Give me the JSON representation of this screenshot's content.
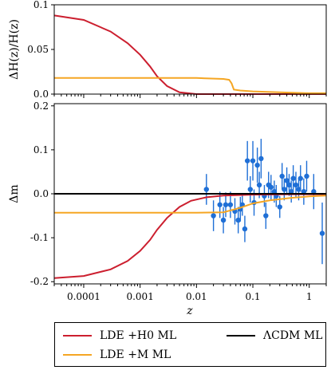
{
  "chart_data": [
    {
      "panel": "top",
      "type": "line",
      "ylabel": "ΔH(z)/H(z)",
      "xscale": "log",
      "xlim": [
        3e-05,
        2.0
      ],
      "ylim": [
        0.0,
        0.1
      ],
      "yticks": [
        0.0,
        0.05,
        0.1
      ],
      "ytick_labels": [
        "0.0",
        "0.05",
        "0.1"
      ],
      "series": [
        {
          "name": "LDE +H0 ML",
          "color": "#cc1f2f",
          "x": [
            3e-05,
            0.0001,
            0.0003,
            0.0006,
            0.001,
            0.0015,
            0.002,
            0.003,
            0.005,
            0.01,
            0.05,
            0.2,
            1.0,
            2.0
          ],
          "y": [
            0.088,
            0.083,
            0.07,
            0.057,
            0.044,
            0.031,
            0.02,
            0.009,
            0.002,
            0.0,
            0.0,
            0.0,
            0.0,
            0.0
          ]
        },
        {
          "name": "LDE +M ML",
          "color": "#f5a623",
          "x": [
            3e-05,
            0.001,
            0.01,
            0.03,
            0.038,
            0.042,
            0.046,
            0.06,
            0.1,
            0.3,
            1.0,
            2.0
          ],
          "y": [
            0.018,
            0.018,
            0.018,
            0.017,
            0.016,
            0.012,
            0.005,
            0.004,
            0.003,
            0.002,
            0.001,
            0.001
          ]
        }
      ]
    },
    {
      "panel": "bottom",
      "type": "line",
      "xlabel": "z",
      "ylabel": "Δm",
      "xscale": "log",
      "xlim": [
        3e-05,
        2.0
      ],
      "ylim": [
        -0.205,
        0.205
      ],
      "yticks": [
        -0.2,
        -0.1,
        0.0,
        0.1,
        0.2
      ],
      "ytick_labels": [
        "-0.2",
        "-0.1",
        "0.0",
        "0.1",
        "0.2"
      ],
      "xticks": [
        0.0001,
        0.001,
        0.01,
        0.1,
        1
      ],
      "xtick_labels": [
        "0.0001",
        "0.001",
        "0.01",
        "0.1",
        "1"
      ],
      "series": [
        {
          "name": "LDE +H0 ML",
          "color": "#cc1f2f",
          "x": [
            3e-05,
            0.0001,
            0.0003,
            0.0006,
            0.001,
            0.0015,
            0.002,
            0.003,
            0.005,
            0.008,
            0.015,
            0.03,
            0.1,
            0.5,
            2.0
          ],
          "y": [
            -0.192,
            -0.187,
            -0.172,
            -0.153,
            -0.13,
            -0.105,
            -0.082,
            -0.055,
            -0.03,
            -0.016,
            -0.008,
            -0.004,
            -0.002,
            -0.001,
            -0.001
          ]
        },
        {
          "name": "LDE +M ML",
          "color": "#f5a623",
          "x": [
            3e-05,
            0.001,
            0.01,
            0.03,
            0.06,
            0.1,
            0.2,
            0.5,
            1.0,
            2.0
          ],
          "y": [
            -0.043,
            -0.043,
            -0.043,
            -0.042,
            -0.032,
            -0.022,
            -0.015,
            -0.009,
            -0.006,
            -0.004
          ]
        },
        {
          "name": "ΛCDM ML",
          "color": "#000000",
          "x": [
            3e-05,
            2.0
          ],
          "y": [
            0.0,
            0.0
          ]
        }
      ],
      "data_points": {
        "color": "#1f6fd6",
        "points": [
          {
            "x": 0.015,
            "y": 0.01,
            "err": 0.035
          },
          {
            "x": 0.02,
            "y": -0.05,
            "err": 0.035
          },
          {
            "x": 0.026,
            "y": -0.025,
            "err": 0.03
          },
          {
            "x": 0.03,
            "y": -0.06,
            "err": 0.03
          },
          {
            "x": 0.033,
            "y": -0.025,
            "err": 0.028
          },
          {
            "x": 0.04,
            "y": -0.025,
            "err": 0.03
          },
          {
            "x": 0.048,
            "y": -0.04,
            "err": 0.03
          },
          {
            "x": 0.055,
            "y": -0.06,
            "err": 0.03
          },
          {
            "x": 0.06,
            "y": -0.035,
            "err": 0.028
          },
          {
            "x": 0.065,
            "y": -0.025,
            "err": 0.025
          },
          {
            "x": 0.072,
            "y": -0.08,
            "err": 0.03
          },
          {
            "x": 0.08,
            "y": 0.075,
            "err": 0.045
          },
          {
            "x": 0.09,
            "y": 0.01,
            "err": 0.03
          },
          {
            "x": 0.1,
            "y": 0.075,
            "err": 0.045
          },
          {
            "x": 0.105,
            "y": -0.02,
            "err": 0.03
          },
          {
            "x": 0.12,
            "y": 0.065,
            "err": 0.04
          },
          {
            "x": 0.13,
            "y": 0.02,
            "err": 0.03
          },
          {
            "x": 0.14,
            "y": 0.08,
            "err": 0.045
          },
          {
            "x": 0.16,
            "y": -0.005,
            "err": 0.025
          },
          {
            "x": 0.17,
            "y": -0.05,
            "err": 0.03
          },
          {
            "x": 0.19,
            "y": 0.02,
            "err": 0.03
          },
          {
            "x": 0.21,
            "y": 0.015,
            "err": 0.028
          },
          {
            "x": 0.24,
            "y": 0.005,
            "err": 0.025
          },
          {
            "x": 0.26,
            "y": -0.005,
            "err": 0.025
          },
          {
            "x": 0.3,
            "y": -0.03,
            "err": 0.025
          },
          {
            "x": 0.33,
            "y": 0.04,
            "err": 0.03
          },
          {
            "x": 0.36,
            "y": 0.01,
            "err": 0.025
          },
          {
            "x": 0.4,
            "y": 0.03,
            "err": 0.03
          },
          {
            "x": 0.44,
            "y": 0.02,
            "err": 0.025
          },
          {
            "x": 0.48,
            "y": 0.005,
            "err": 0.025
          },
          {
            "x": 0.52,
            "y": 0.035,
            "err": 0.03
          },
          {
            "x": 0.58,
            "y": 0.02,
            "err": 0.03
          },
          {
            "x": 0.65,
            "y": 0.01,
            "err": 0.025
          },
          {
            "x": 0.7,
            "y": 0.035,
            "err": 0.03
          },
          {
            "x": 0.8,
            "y": 0.005,
            "err": 0.03
          },
          {
            "x": 0.9,
            "y": 0.04,
            "err": 0.035
          },
          {
            "x": 1.2,
            "y": 0.005,
            "err": 0.04
          },
          {
            "x": 1.7,
            "y": -0.09,
            "err": 0.07
          }
        ]
      }
    }
  ],
  "legend": {
    "placement": "below",
    "items": [
      {
        "label": "LDE +H0 ML",
        "color": "#cc1f2f"
      },
      {
        "label": "LDE +M  ML",
        "color": "#f5a623"
      },
      {
        "label": "ΛCDM ML",
        "color": "#000000"
      }
    ]
  }
}
